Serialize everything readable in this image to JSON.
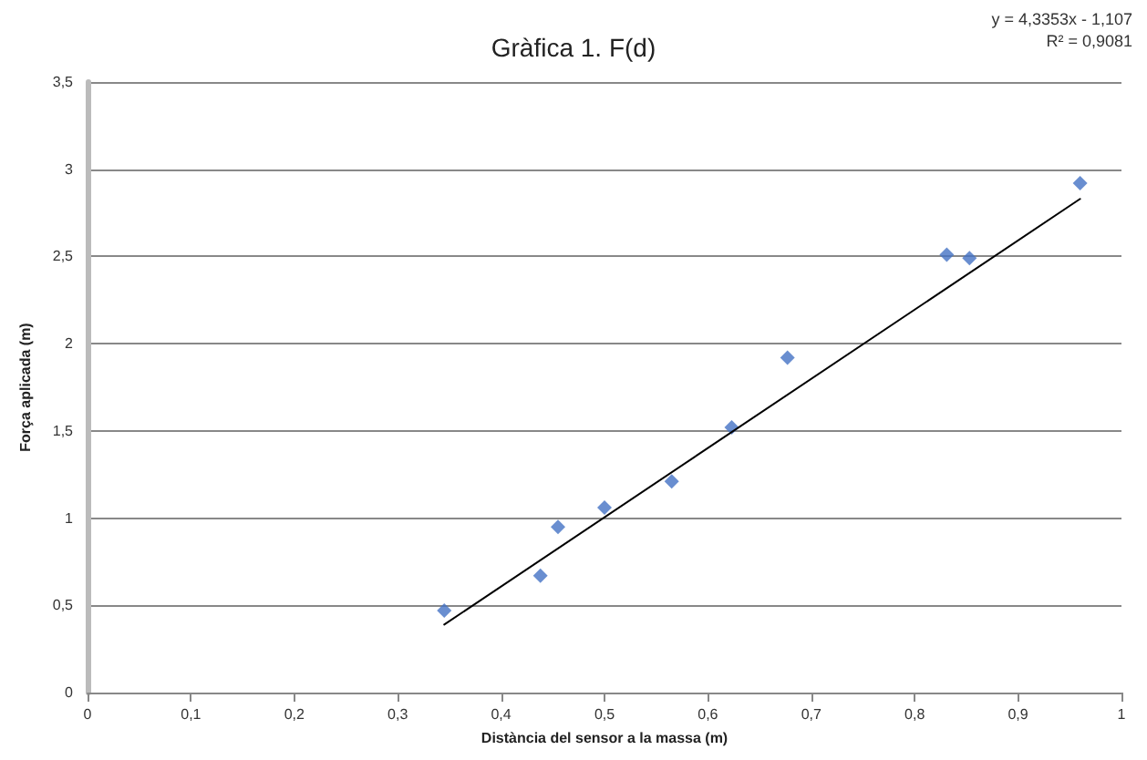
{
  "chart_data": {
    "type": "scatter",
    "title": "Gràfica 1. F(d)",
    "xlabel": "Distància del sensor a la massa (m)",
    "ylabel": "Força aplicada (m)",
    "annotations": [
      "y = 4,3353x - 1,107",
      "R² = 0,9081"
    ],
    "series": [
      {
        "color": "#4472c4",
        "marker": "diamond",
        "x": [
          0.345,
          0.438,
          0.455,
          0.5,
          0.565,
          0.623,
          0.677,
          0.831,
          0.853,
          0.96
        ],
        "values": [
          0.47,
          0.67,
          0.95,
          1.06,
          1.21,
          1.52,
          1.92,
          2.51,
          2.49,
          2.92
        ]
      },
      {
        "type": "line",
        "color": "#000000",
        "marker": "none",
        "line_style": "solid",
        "x": [
          0.345,
          0.96
        ],
        "values": [
          0.39,
          2.83
        ]
      }
    ],
    "xlim": [
      0,
      1
    ],
    "xticks": [
      0,
      {
        "value": 0.1,
        "label": "0,1"
      },
      {
        "value": 0.2,
        "label": "0,2"
      },
      {
        "value": 0.3,
        "label": "0,3"
      },
      {
        "value": 0.4,
        "label": "0,4"
      },
      {
        "value": 0.5,
        "label": "0,5"
      },
      {
        "value": 0.6,
        "label": "0,6"
      },
      {
        "value": 0.7,
        "label": "0,7"
      },
      {
        "value": 0.8,
        "label": "0,8"
      },
      {
        "value": 0.9,
        "label": "0,9"
      },
      1
    ],
    "ylim": [
      0,
      3.5
    ],
    "yticks": [
      0,
      {
        "value": 0.5,
        "label": "0,5"
      },
      1,
      {
        "value": 1.5,
        "label": "1,5"
      },
      2,
      {
        "value": 2.5,
        "label": "2,5"
      },
      3,
      {
        "value": 3.5,
        "label": "3,5"
      }
    ],
    "grid": "y"
  }
}
